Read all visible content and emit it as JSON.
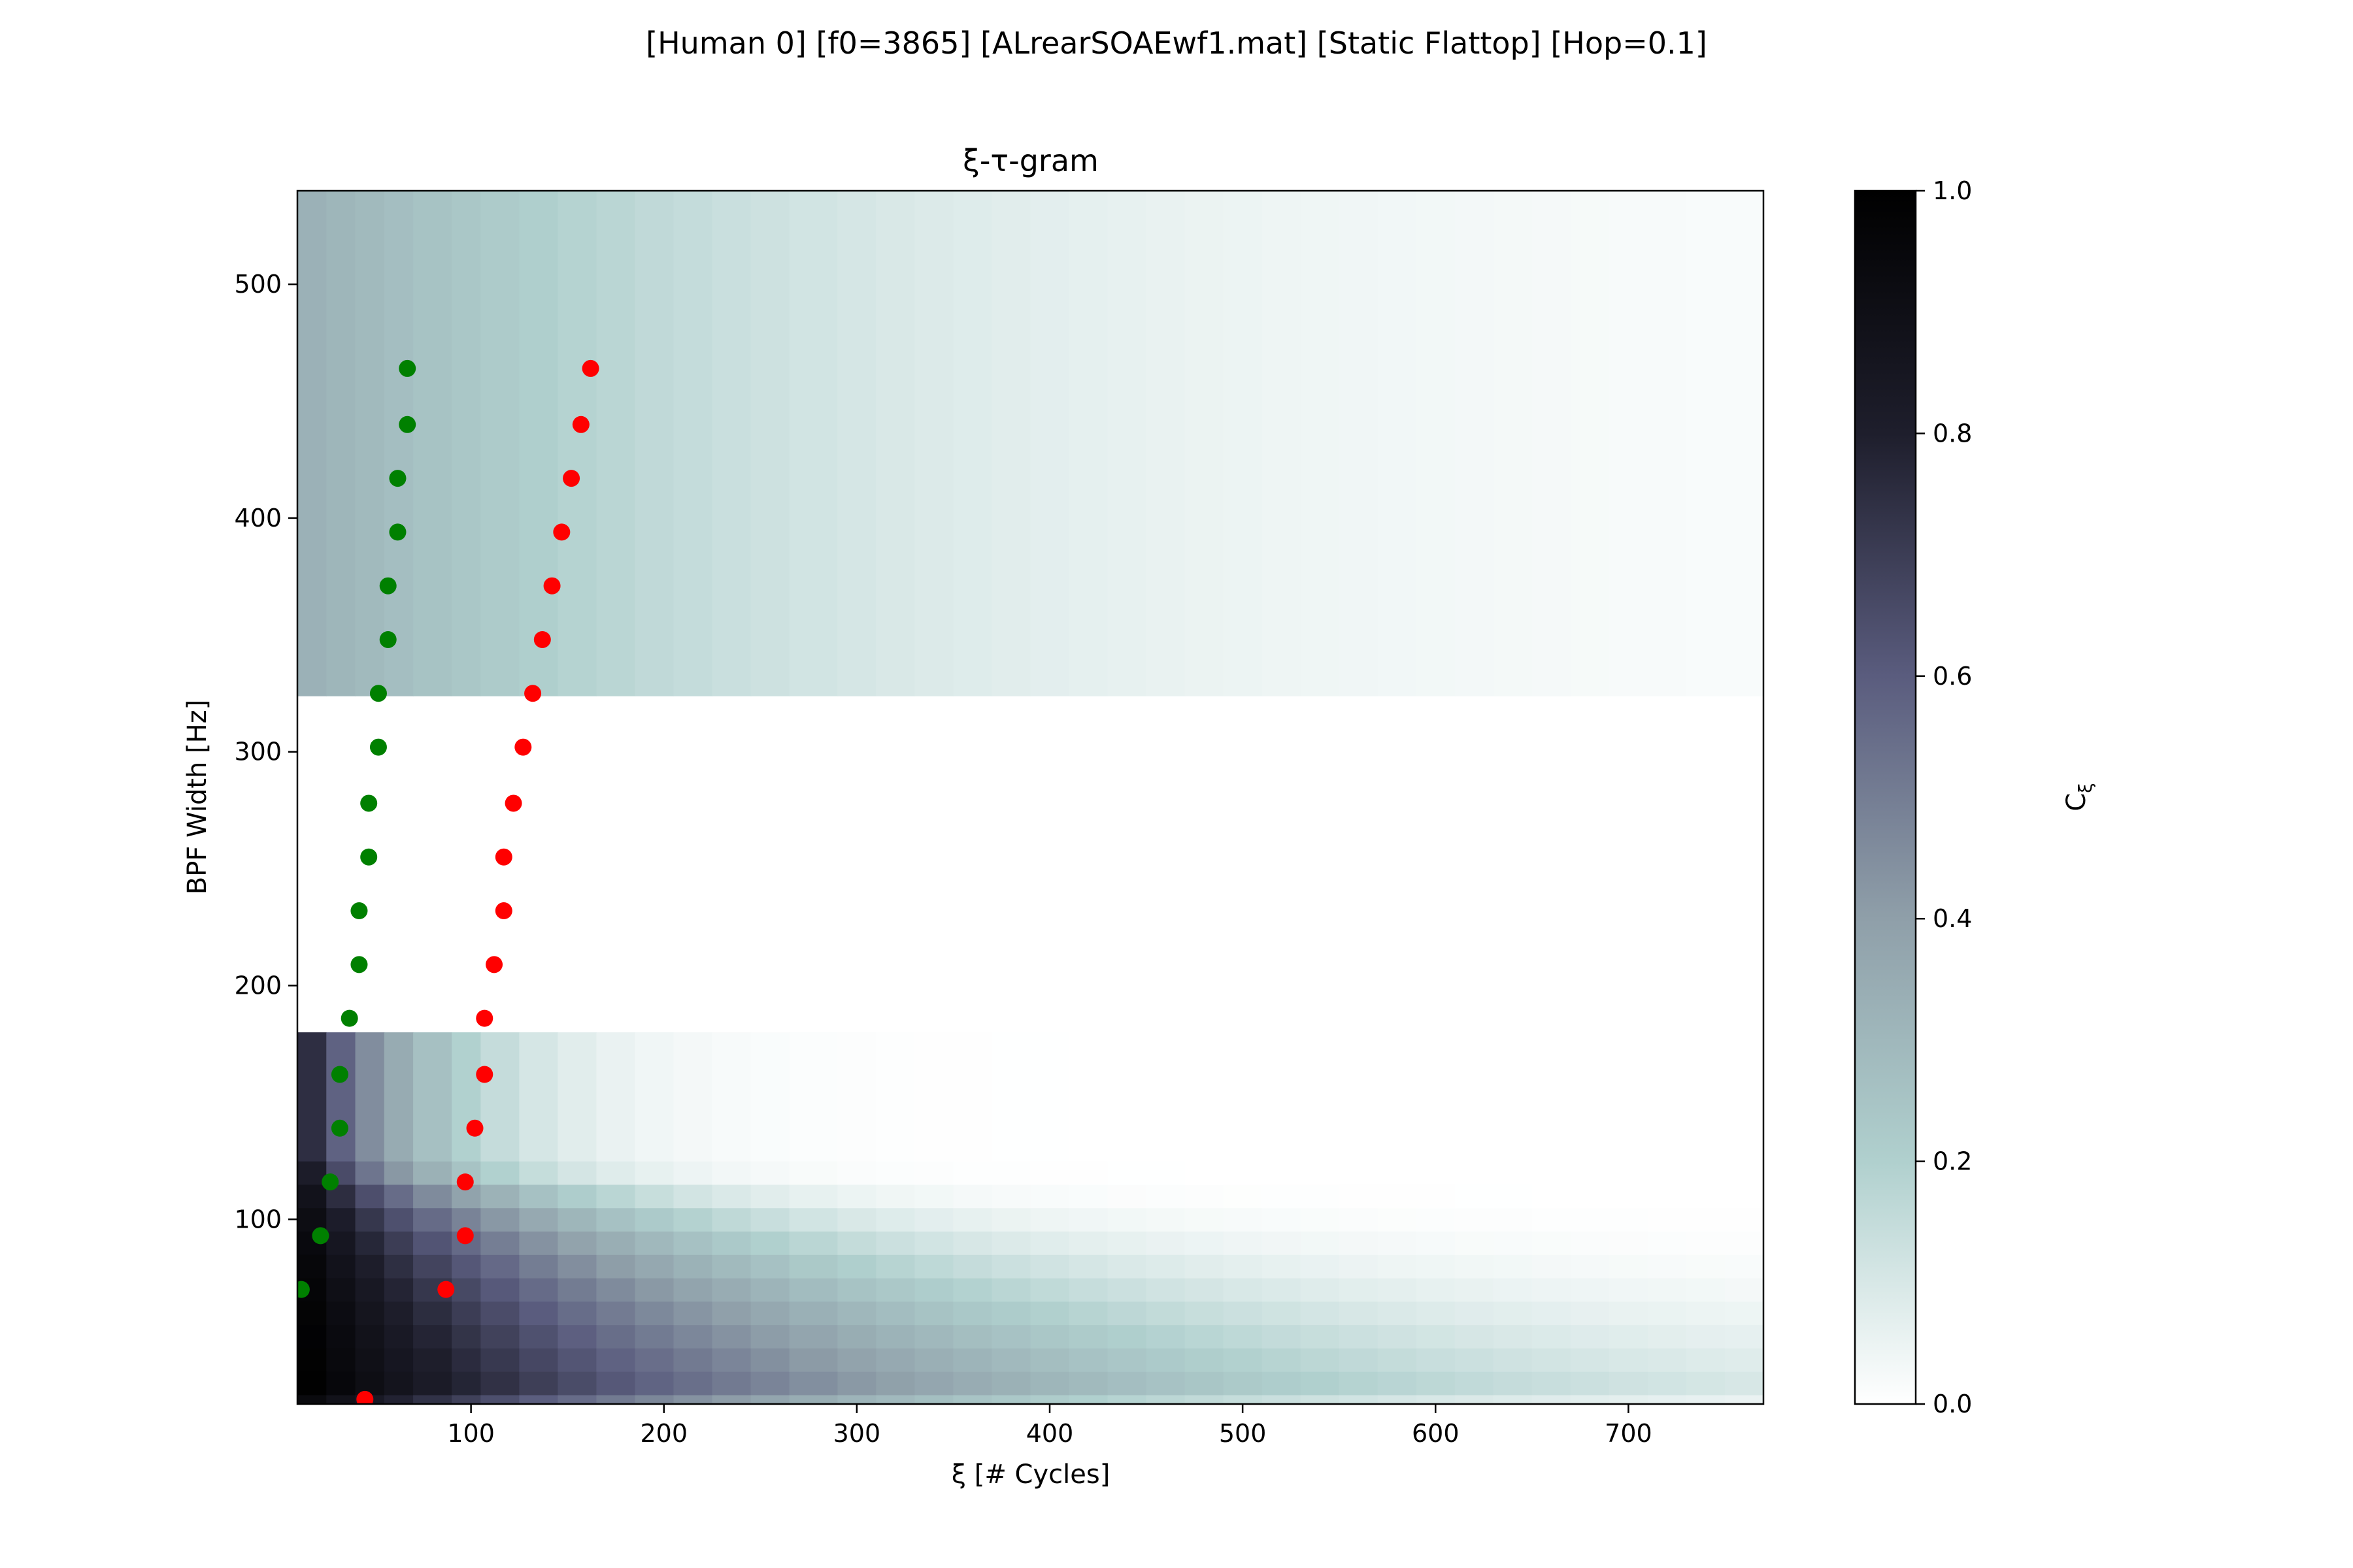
{
  "suptitle": "[Human 0]   [f0=3865]   [ALrearSOAEwf1.mat]   [Static Flattop]   [Hop=0.1]",
  "chart_data": {
    "type": "heatmap",
    "title": "ξ-τ-gram",
    "xlabel": "ξ [# Cycles]",
    "ylabel": "BPF Width [Hz]",
    "xlim": [
      10,
      770
    ],
    "ylim": [
      21,
      540
    ],
    "xticks": [
      100,
      200,
      300,
      400,
      500,
      600,
      700
    ],
    "yticks": [
      100,
      200,
      300,
      400,
      500
    ],
    "grid": false,
    "colorbar": {
      "label": "C_ξ",
      "range": [
        0.0,
        1.0
      ],
      "ticks": [
        "0.0",
        "0.2",
        "0.4",
        "0.6",
        "0.8",
        "1.0"
      ],
      "colormap": [
        "#ffffff",
        "#b0d0ce",
        "#8f9fa9",
        "#5a5c7e",
        "#1e1e2c",
        "#000000"
      ]
    },
    "heatmap": {
      "x_edges": [
        10,
        25,
        40,
        55,
        70,
        90,
        105,
        125,
        145,
        165,
        185,
        205,
        225,
        245,
        265,
        290,
        310,
        330,
        350,
        370,
        390,
        410,
        430,
        450,
        470,
        490,
        510,
        530,
        550,
        570,
        590,
        610,
        630,
        650,
        670,
        690,
        710,
        730,
        750,
        770
      ],
      "bands": [
        {
          "y_edges": [
            21,
            25,
            35,
            45,
            55,
            65,
            75,
            85,
            95,
            105,
            115,
            125
          ],
          "tau": 0.1,
          "base": 1.0
        },
        {
          "y_edges": [
            125,
            180
          ],
          "tau": 0.0,
          "base": 0.9
        },
        {
          "y_edges": [
            180,
            324
          ],
          "empty": true
        },
        {
          "y_edges": [
            324,
            540
          ],
          "tau": 0.0,
          "base": 0.35
        }
      ]
    },
    "series": [
      {
        "name": "",
        "color": "#008000",
        "points": [
          [
            12,
            70
          ],
          [
            22,
            93
          ],
          [
            27,
            116
          ],
          [
            32,
            139
          ],
          [
            32,
            162
          ],
          [
            37,
            186
          ],
          [
            42,
            209
          ],
          [
            42,
            232
          ],
          [
            47,
            255
          ],
          [
            47,
            278
          ],
          [
            52,
            302
          ],
          [
            52,
            325
          ],
          [
            57,
            348
          ],
          [
            57,
            371
          ],
          [
            62,
            394
          ],
          [
            62,
            417
          ],
          [
            67,
            440
          ],
          [
            67,
            464
          ]
        ]
      },
      {
        "name": "",
        "color": "#ff0000",
        "points": [
          [
            45,
            23
          ],
          [
            87,
            70
          ],
          [
            97,
            93
          ],
          [
            97,
            116
          ],
          [
            102,
            139
          ],
          [
            107,
            162
          ],
          [
            107,
            186
          ],
          [
            112,
            209
          ],
          [
            117,
            232
          ],
          [
            117,
            255
          ],
          [
            122,
            278
          ],
          [
            127,
            302
          ],
          [
            132,
            325
          ],
          [
            137,
            348
          ],
          [
            142,
            371
          ],
          [
            147,
            394
          ],
          [
            152,
            417
          ],
          [
            157,
            440
          ],
          [
            162,
            464
          ]
        ]
      }
    ]
  }
}
